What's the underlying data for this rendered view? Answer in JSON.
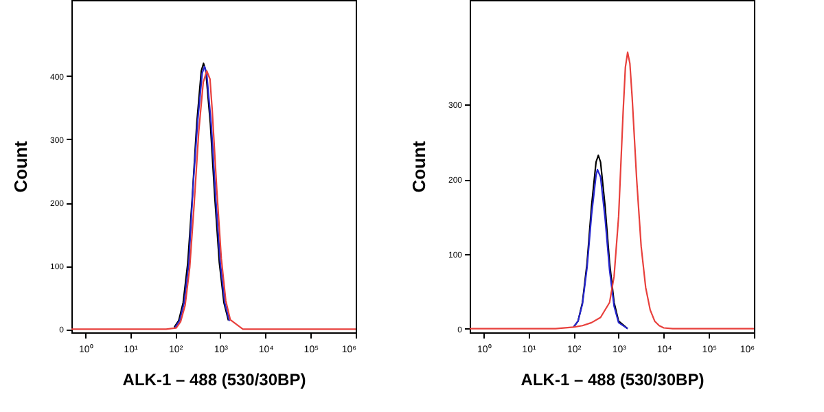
{
  "chart_data": [
    {
      "type": "line",
      "xlabel": "ALK-1 – 488 (530/30BP)",
      "ylabel": "Count",
      "log": "x",
      "xlim": [
        0.5,
        1000000
      ],
      "xticks": [
        {
          "value": 1,
          "label": "10⁰"
        },
        {
          "value": 10,
          "label": "10¹"
        },
        {
          "value": 100,
          "label": "10²"
        },
        {
          "value": 1000,
          "label": "10³"
        },
        {
          "value": 10000,
          "label": "10⁴"
        },
        {
          "value": 100000,
          "label": "10⁵"
        },
        {
          "value": 1000000,
          "label": "10⁶"
        }
      ],
      "ylim": [
        -5,
        520
      ],
      "yticks": [
        0,
        100,
        200,
        300,
        400
      ],
      "series": [
        {
          "color": "#000000",
          "x": [
            95,
            120,
            150,
            190,
            238,
            300,
            378,
            424,
            476,
            600,
            755,
            950,
            1200,
            1510
          ],
          "values": [
            3,
            14,
            42,
            105,
            207,
            325,
            408,
            420,
            408,
            325,
            207,
            105,
            42,
            14
          ]
        },
        {
          "color": "#2626d0",
          "x": [
            100,
            126,
            158,
            200,
            251,
            316,
            398,
            447,
            501,
            631,
            794,
            1000,
            1259,
            1585
          ],
          "values": [
            3,
            14,
            42,
            104,
            230,
            330,
            405,
            415,
            402,
            322,
            205,
            104,
            41,
            13
          ]
        },
        {
          "color": "#e8403c",
          "x": [
            0.5,
            40,
            63,
            105,
            132,
            166,
            210,
            263,
            332,
            418,
            500,
            590,
            662,
            835,
            1050,
            1320,
            1660,
            3162,
            1000000
          ],
          "values": [
            0,
            0,
            0,
            2,
            12,
            38,
            98,
            198,
            312,
            390,
            408,
            395,
            345,
            220,
            112,
            45,
            15,
            0,
            0
          ]
        }
      ]
    },
    {
      "type": "line",
      "xlabel": "ALK-1 – 488 (530/30BP)",
      "ylabel": "Count",
      "log": "x",
      "xlim": [
        0.5,
        1000000
      ],
      "xticks": [
        {
          "value": 1,
          "label": "10⁰"
        },
        {
          "value": 10,
          "label": "10¹"
        },
        {
          "value": 100,
          "label": "10²"
        },
        {
          "value": 1000,
          "label": "10³"
        },
        {
          "value": 10000,
          "label": "10⁴"
        },
        {
          "value": 100000,
          "label": "10⁵"
        },
        {
          "value": 1000000,
          "label": "10⁶"
        }
      ],
      "ylim": [
        -5,
        440
      ],
      "yticks": [
        0,
        100,
        200,
        300
      ],
      "series": [
        {
          "color": "#000000",
          "x": [
            100,
            126,
            158,
            200,
            251,
            316,
            355,
            398,
            501,
            631,
            794,
            1000,
            1585
          ],
          "values": [
            2,
            10,
            35,
            88,
            164,
            223,
            232,
            223,
            164,
            88,
            35,
            10,
            0
          ]
        },
        {
          "color": "#2626d0",
          "x": [
            100,
            126,
            158,
            200,
            251,
            316,
            339,
            398,
            501,
            631,
            794,
            1000,
            1585
          ],
          "values": [
            2,
            10,
            33,
            82,
            152,
            205,
            213,
            203,
            148,
            78,
            30,
            8,
            0
          ]
        },
        {
          "color": "#e8403c",
          "x": [
            0.5,
            40,
            100,
            158,
            251,
            398,
            631,
            794,
            1000,
            1259,
            1413,
            1585,
            1778,
            1995,
            2512,
            3162,
            3981,
            5012,
            6310,
            7943,
            10000,
            15849,
            1000000
          ],
          "values": [
            0,
            0,
            2,
            4,
            8,
            15,
            35,
            70,
            150,
            290,
            350,
            370,
            355,
            310,
            200,
            110,
            55,
            25,
            10,
            4,
            1,
            0,
            0
          ]
        }
      ]
    }
  ]
}
